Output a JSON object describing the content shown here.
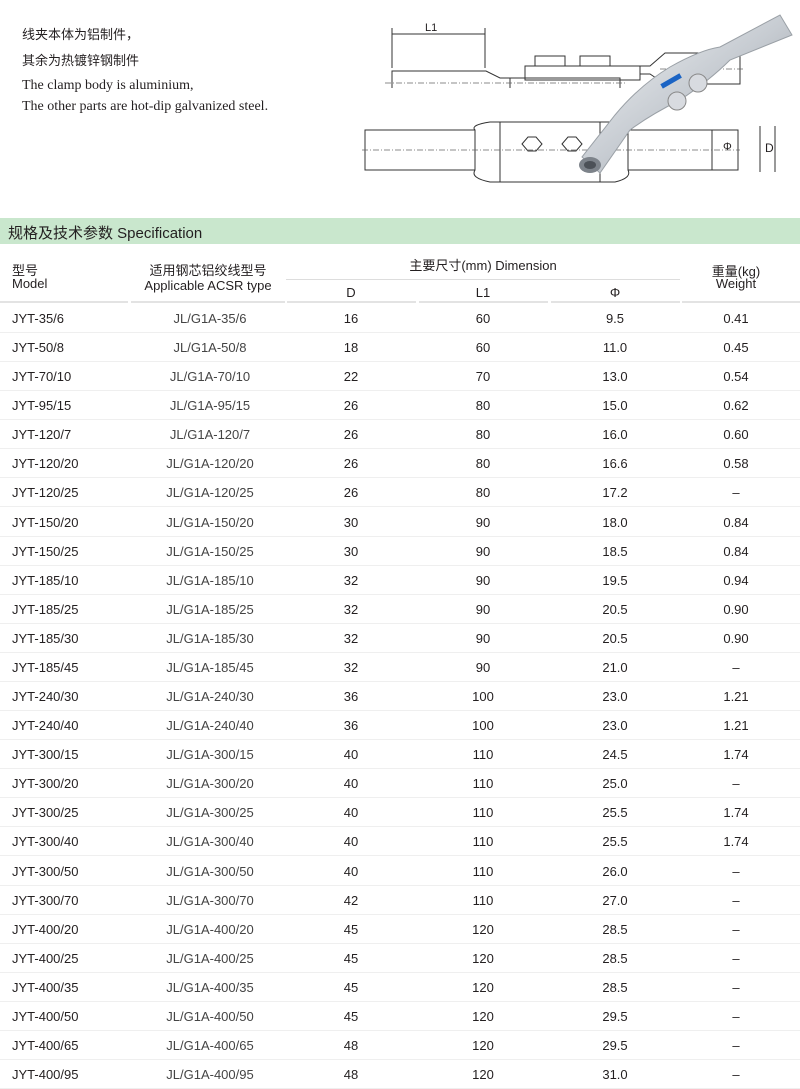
{
  "intro": {
    "cn_line1": "线夹本体为铝制件，",
    "cn_line2": "其余为热镀锌钢制件",
    "en_line1": "The clamp body is aluminium,",
    "en_line2": "The other parts are hot-dip galvanized steel."
  },
  "diagram": {
    "label_l1": "L1",
    "label_phi": "Φ",
    "label_d": "D"
  },
  "section": {
    "title": "规格及技术参数  Specification",
    "band_color": "#c9e7cd"
  },
  "table": {
    "headers": {
      "model_cn": "型号",
      "model_en": "Model",
      "acsr_cn": "适用钢芯铝绞线型号",
      "acsr_en": "Applicable ACSR type",
      "dimension": "主要尺寸(mm)  Dimension",
      "d": "D",
      "l1": "L1",
      "phi": "Φ",
      "weight_cn": "重量(kg)",
      "weight_en": "Weight"
    },
    "rows": [
      [
        "JYT-35/6",
        "JL/G1A-35/6",
        "16",
        "60",
        "9.5",
        "0.41"
      ],
      [
        "JYT-50/8",
        "JL/G1A-50/8",
        "18",
        "60",
        "11.0",
        "0.45"
      ],
      [
        "JYT-70/10",
        "JL/G1A-70/10",
        "22",
        "70",
        "13.0",
        "0.54"
      ],
      [
        "JYT-95/15",
        "JL/G1A-95/15",
        "26",
        "80",
        "15.0",
        "0.62"
      ],
      [
        "JYT-120/7",
        "JL/G1A-120/7",
        "26",
        "80",
        "16.0",
        "0.60"
      ],
      [
        "JYT-120/20",
        "JL/G1A-120/20",
        "26",
        "80",
        "16.6",
        "0.58"
      ],
      [
        "JYT-120/25",
        "JL/G1A-120/25",
        "26",
        "80",
        "17.2",
        "–"
      ],
      [
        "JYT-150/20",
        "JL/G1A-150/20",
        "30",
        "90",
        "18.0",
        "0.84"
      ],
      [
        "JYT-150/25",
        "JL/G1A-150/25",
        "30",
        "90",
        "18.5",
        "0.84"
      ],
      [
        "JYT-185/10",
        "JL/G1A-185/10",
        "32",
        "90",
        "19.5",
        "0.94"
      ],
      [
        "JYT-185/25",
        "JL/G1A-185/25",
        "32",
        "90",
        "20.5",
        "0.90"
      ],
      [
        "JYT-185/30",
        "JL/G1A-185/30",
        "32",
        "90",
        "20.5",
        "0.90"
      ],
      [
        "JYT-185/45",
        "JL/G1A-185/45",
        "32",
        "90",
        "21.0",
        "–"
      ],
      [
        "JYT-240/30",
        "JL/G1A-240/30",
        "36",
        "100",
        "23.0",
        "1.21"
      ],
      [
        "JYT-240/40",
        "JL/G1A-240/40",
        "36",
        "100",
        "23.0",
        "1.21"
      ],
      [
        "JYT-300/15",
        "JL/G1A-300/15",
        "40",
        "110",
        "24.5",
        "1.74"
      ],
      [
        "JYT-300/20",
        "JL/G1A-300/20",
        "40",
        "110",
        "25.0",
        "–"
      ],
      [
        "JYT-300/25",
        "JL/G1A-300/25",
        "40",
        "110",
        "25.5",
        "1.74"
      ],
      [
        "JYT-300/40",
        "JL/G1A-300/40",
        "40",
        "110",
        "25.5",
        "1.74"
      ],
      [
        "JYT-300/50",
        "JL/G1A-300/50",
        "40",
        "110",
        "26.0",
        "–"
      ],
      [
        "JYT-300/70",
        "JL/G1A-300/70",
        "42",
        "110",
        "27.0",
        "–"
      ],
      [
        "JYT-400/20",
        "JL/G1A-400/20",
        "45",
        "120",
        "28.5",
        "–"
      ],
      [
        "JYT-400/25",
        "JL/G1A-400/25",
        "45",
        "120",
        "28.5",
        "–"
      ],
      [
        "JYT-400/35",
        "JL/G1A-400/35",
        "45",
        "120",
        "28.5",
        "–"
      ],
      [
        "JYT-400/50",
        "JL/G1A-400/50",
        "45",
        "120",
        "29.5",
        "–"
      ],
      [
        "JYT-400/65",
        "JL/G1A-400/65",
        "48",
        "120",
        "29.5",
        "–"
      ],
      [
        "JYT-400/95",
        "JL/G1A-400/95",
        "48",
        "120",
        "31.0",
        "–"
      ]
    ]
  }
}
